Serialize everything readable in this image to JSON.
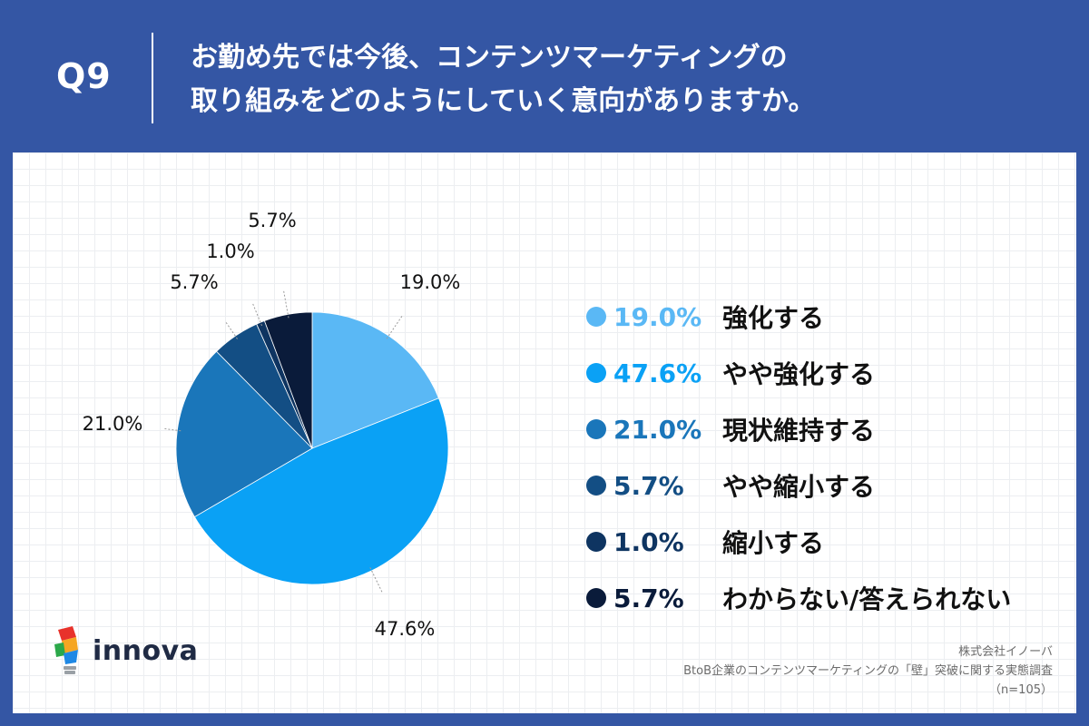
{
  "header": {
    "q_label": "Q9",
    "question_line1": "お勤め先では今後、コンテンツマーケティングの",
    "question_line2": "取り組みをどのようにしていく意向がありますか。"
  },
  "chart_data": {
    "type": "pie",
    "start_angle_deg": 0,
    "direction": "clockwise",
    "slices": [
      {
        "label": "強化する",
        "value": 19.0,
        "display": "19.0%",
        "color": "#5ab8f5"
      },
      {
        "label": "やや強化する",
        "value": 47.6,
        "display": "47.6%",
        "color": "#0aa1f5"
      },
      {
        "label": "現状維持する",
        "value": 21.0,
        "display": "21.0%",
        "color": "#1a76ba"
      },
      {
        "label": "やや縮小する",
        "value": 5.7,
        "display": "5.7%",
        "color": "#134e84"
      },
      {
        "label": "縮小する",
        "value": 1.0,
        "display": "1.0%",
        "color": "#0e3461"
      },
      {
        "label": "わからない/答えられない",
        "value": 5.7,
        "display": "5.7%",
        "color": "#0a1b3a"
      }
    ],
    "legend_placement": "right"
  },
  "footer": {
    "logo_text": "innova",
    "source_company": "株式会社イノーバ",
    "source_survey": "BtoB企業のコンテンツマーケティングの「壁」突破に関する実態調査",
    "source_n": "（n=105）"
  },
  "colors": {
    "background": "#3456a4",
    "panel": "#ffffff"
  }
}
